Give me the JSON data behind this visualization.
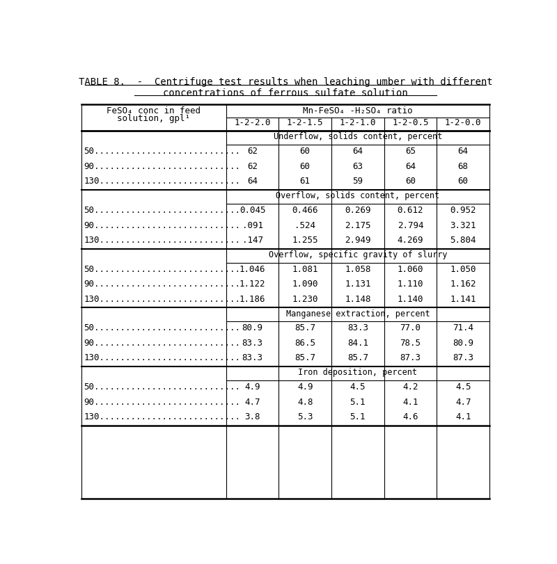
{
  "title_line1": "TABLE 8.  -  Centrifuge test results when leaching umber with different",
  "title_line2": "concentrations of ferrous sulfate solution",
  "col_header_left1": "FeSO₄ conc in feed",
  "col_header_left2": "solution, gpl¹",
  "col_header_right": "Mn-FeSO₄ -H₂SO₄ ratio",
  "sub_columns": [
    "1-2-2.0",
    "1-2-1.5",
    "1-2-1.0",
    "1-2-0.5",
    "1-2-0.0"
  ],
  "sections": [
    {
      "label": "Underflow, solids content, percent",
      "rows": [
        {
          "feed": "50",
          "values": [
            "62",
            "60",
            "64",
            "65",
            "64"
          ]
        },
        {
          "feed": "90",
          "values": [
            "62",
            "60",
            "63",
            "64",
            "68"
          ]
        },
        {
          "feed": "130",
          "values": [
            "64",
            "61",
            "59",
            "60",
            "60"
          ]
        }
      ]
    },
    {
      "label": "Overflow, solids content, percent",
      "rows": [
        {
          "feed": "50",
          "values": [
            "0.045",
            "0.466",
            "0.269",
            "0.612",
            "0.952"
          ]
        },
        {
          "feed": "90",
          "values": [
            ".091",
            ".524",
            "2.175",
            "2.794",
            "3.321"
          ]
        },
        {
          "feed": "130",
          "values": [
            ".147",
            "1.255",
            "2.949",
            "4.269",
            "5.804"
          ]
        }
      ]
    },
    {
      "label": "Overflow, specific gravity of slurry",
      "rows": [
        {
          "feed": "50",
          "values": [
            "1.046",
            "1.081",
            "1.058",
            "1.060",
            "1.050"
          ]
        },
        {
          "feed": "90",
          "values": [
            "1.122",
            "1.090",
            "1.131",
            "1.110",
            "1.162"
          ]
        },
        {
          "feed": "130",
          "values": [
            "1.186",
            "1.230",
            "1.148",
            "1.140",
            "1.141"
          ]
        }
      ]
    },
    {
      "label": "Manganese extraction, percent",
      "rows": [
        {
          "feed": "50",
          "values": [
            "80.9",
            "85.7",
            "83.3",
            "77.0",
            "71.4"
          ]
        },
        {
          "feed": "90",
          "values": [
            "83.3",
            "86.5",
            "84.1",
            "78.5",
            "80.9"
          ]
        },
        {
          "feed": "130",
          "values": [
            "83.3",
            "85.7",
            "85.7",
            "87.3",
            "87.3"
          ]
        }
      ]
    },
    {
      "label": "Iron deposition, percent",
      "rows": [
        {
          "feed": "50",
          "values": [
            "4.9",
            "4.9",
            "4.5",
            "4.2",
            "4.5"
          ]
        },
        {
          "feed": "90",
          "values": [
            "4.7",
            "4.8",
            "5.1",
            "4.1",
            "4.7"
          ]
        },
        {
          "feed": "130",
          "values": [
            "3.8",
            "5.3",
            "5.1",
            "4.6",
            "4.1"
          ]
        }
      ]
    }
  ],
  "bg_color": "#ffffff",
  "text_color": "#000000",
  "font_size": 9.0,
  "title_font_size": 10.0
}
